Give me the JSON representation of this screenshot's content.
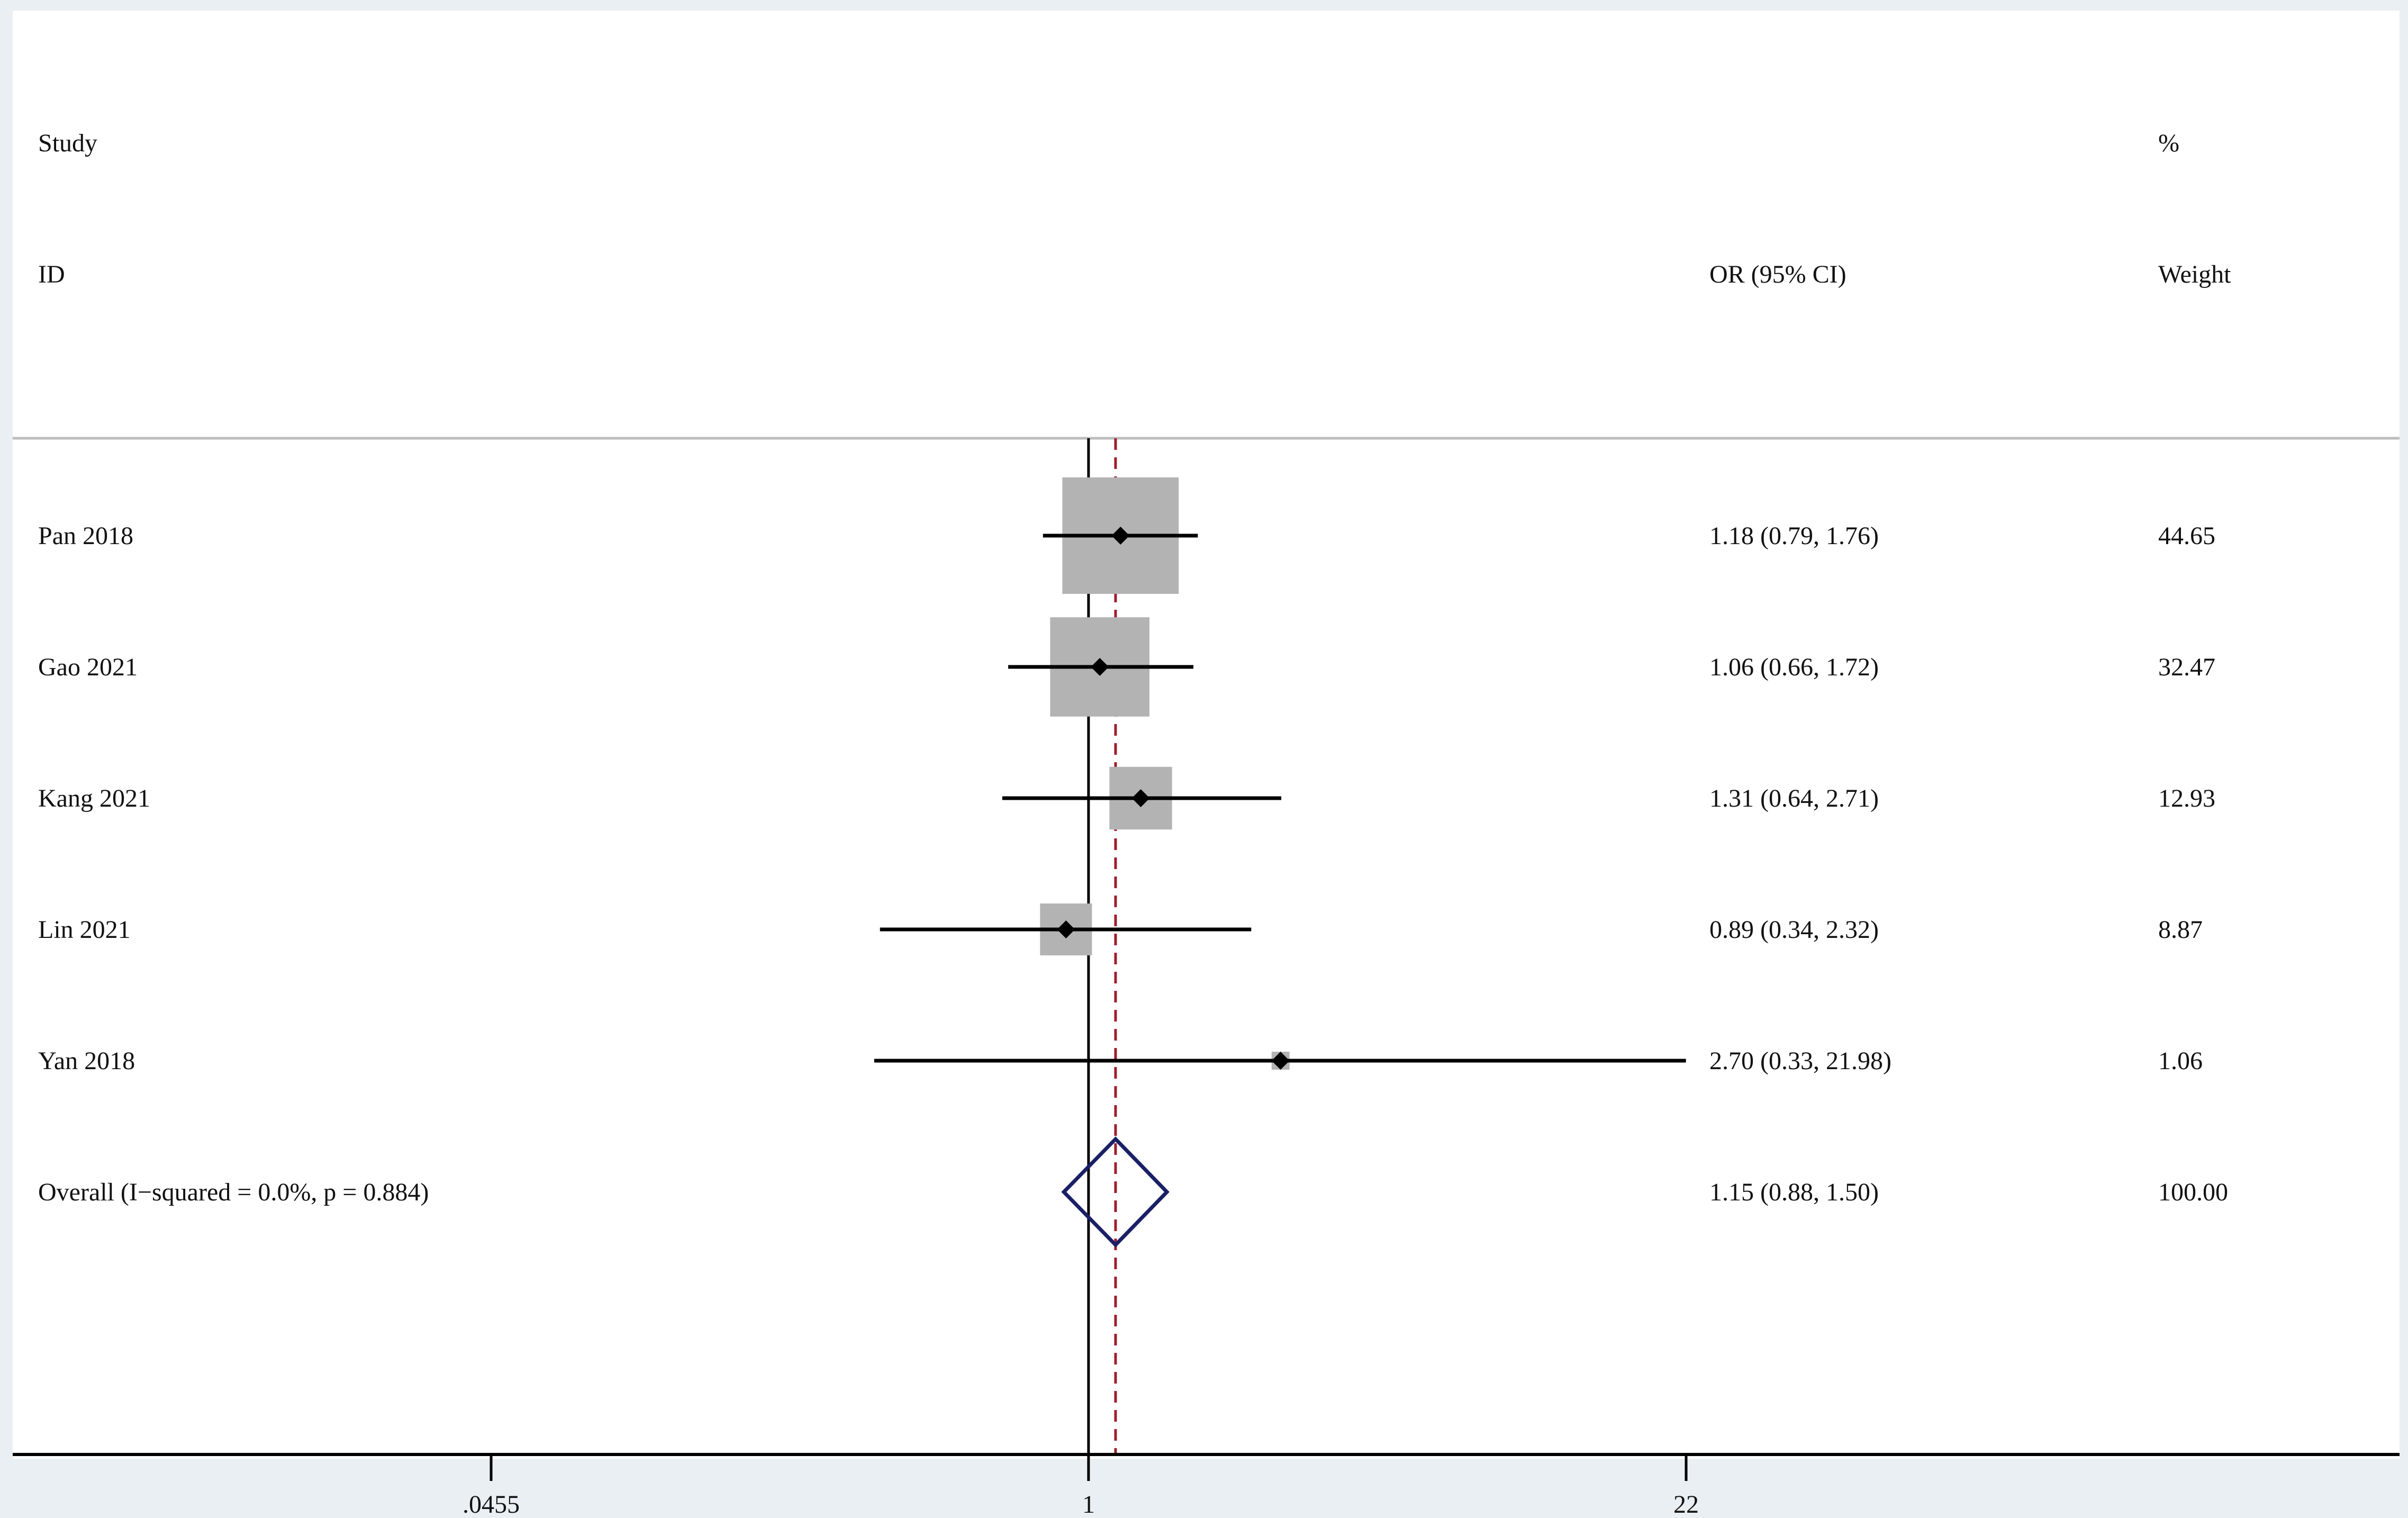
{
  "colors": {
    "frame_bg": "#e9eff2",
    "panel_bg": "#ffffff",
    "box": "#b3b3b3",
    "ci_line": "#000000",
    "point": "#000000",
    "null_line": "#000000",
    "overall_line": "#a21d2c",
    "diamond": "#1a1f66",
    "separator": "#bdbdbd"
  },
  "chart_data": {
    "type": "forest",
    "x_scale": "log",
    "xlim": [
      0.0455,
      22
    ],
    "null_value": 1,
    "x_ticks": [
      0.0455,
      1,
      22
    ],
    "x_tick_labels": [
      ".0455",
      "1",
      "22"
    ],
    "header": {
      "study_line1": "Study",
      "study_line2": "ID",
      "effect_label": "OR (95% CI)",
      "weight_line1": "%",
      "weight_line2": "Weight"
    },
    "studies": [
      {
        "name": "Pan 2018",
        "or": 1.18,
        "lower": 0.79,
        "upper": 1.76,
        "weight": 44.65,
        "label": "1.18 (0.79, 1.76)",
        "weight_label": "44.65"
      },
      {
        "name": "Gao 2021",
        "or": 1.06,
        "lower": 0.66,
        "upper": 1.72,
        "weight": 32.47,
        "label": "1.06 (0.66, 1.72)",
        "weight_label": "32.47"
      },
      {
        "name": "Kang 2021",
        "or": 1.31,
        "lower": 0.64,
        "upper": 2.71,
        "weight": 12.93,
        "label": "1.31 (0.64, 2.71)",
        "weight_label": "12.93"
      },
      {
        "name": "Lin 2021",
        "or": 0.89,
        "lower": 0.34,
        "upper": 2.32,
        "weight": 8.87,
        "label": "0.89 (0.34, 2.32)",
        "weight_label": "8.87"
      },
      {
        "name": "Yan 2018",
        "or": 2.7,
        "lower": 0.33,
        "upper": 21.98,
        "weight": 1.06,
        "label": "2.70 (0.33, 21.98)",
        "weight_label": "1.06"
      }
    ],
    "overall": {
      "name": "Overall  (I−squared = 0.0%, p = 0.884)",
      "or": 1.15,
      "lower": 0.88,
      "upper": 1.5,
      "weight": 100.0,
      "label": "1.15 (0.88, 1.50)",
      "weight_label": "100.00"
    }
  }
}
